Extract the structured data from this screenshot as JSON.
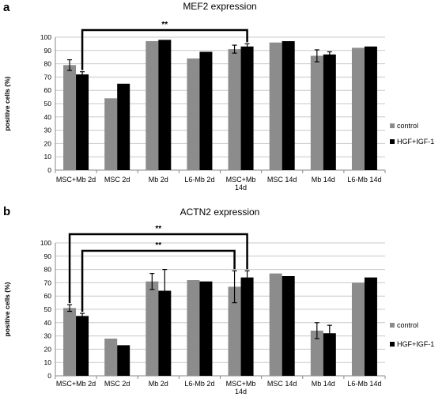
{
  "chart_data": [
    {
      "type": "bar",
      "panel_label": "a",
      "title": "MEF2 expression",
      "ylabel": "positive cells (%)",
      "ylim": [
        0,
        100
      ],
      "ytick_step": 10,
      "categories": [
        "MSC+Mb 2d",
        "MSC 2d",
        "Mb 2d",
        "L6-Mb 2d",
        "MSC+Mb 14d",
        "MSC 14d",
        "Mb 14d",
        "L6-Mb 14d"
      ],
      "series": [
        {
          "name": "control",
          "color": "#8c8c8c",
          "values": [
            79,
            54,
            97,
            84,
            91,
            96,
            86,
            92
          ],
          "errors": [
            4,
            null,
            null,
            null,
            3,
            null,
            4.5,
            null
          ]
        },
        {
          "name": "HGF+IGF-1",
          "color": "#000000",
          "values": [
            72,
            65,
            98,
            89,
            93,
            97,
            87,
            93
          ],
          "errors": [
            2,
            null,
            null,
            null,
            2,
            null,
            2,
            null
          ]
        }
      ],
      "significance": [
        {
          "label": "**",
          "from_category": 0,
          "from_series": 1,
          "to_category": 4,
          "to_series": 1
        }
      ],
      "legend": "right"
    },
    {
      "type": "bar",
      "panel_label": "b",
      "title": "ACTN2 expression",
      "ylabel": "positive cells (%)",
      "ylim": [
        0,
        100
      ],
      "ytick_step": 10,
      "categories": [
        "MSC+Mb 2d",
        "MSC 2d",
        "Mb 2d",
        "L6-Mb 2d",
        "MSC+Mb 14d",
        "MSC 14d",
        "Mb 14d",
        "L6-Mb 14d"
      ],
      "series": [
        {
          "name": "control",
          "color": "#8c8c8c",
          "values": [
            51,
            28,
            71,
            72,
            67,
            77,
            34,
            70
          ],
          "errors": [
            2.5,
            null,
            6,
            null,
            12,
            null,
            6,
            null
          ]
        },
        {
          "name": "HGF+IGF-1",
          "color": "#000000",
          "values": [
            45,
            23,
            64,
            71,
            74,
            75,
            32,
            74
          ],
          "errors": [
            2,
            null,
            16,
            null,
            5,
            null,
            6,
            null
          ]
        }
      ],
      "significance": [
        {
          "label": "**",
          "from_category": 0,
          "from_series": 0,
          "to_category": 4,
          "to_series": 1
        },
        {
          "label": "**",
          "from_category": 0,
          "from_series": 1,
          "to_category": 4,
          "to_series": 0
        }
      ],
      "legend": "right"
    }
  ]
}
